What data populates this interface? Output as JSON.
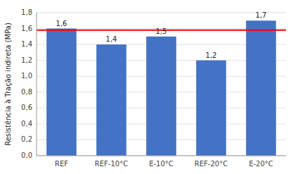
{
  "chart_data": {
    "type": "bar",
    "categories": [
      "REF",
      "REF-10°C",
      "E-10°C",
      "REF-20°C",
      "E-20°C"
    ],
    "values": [
      1.6,
      1.4,
      1.5,
      1.2,
      1.7
    ],
    "value_labels": [
      "1,6",
      "1,4",
      "1,5",
      "1,2",
      "1,7"
    ],
    "data_labels": true,
    "color": "#4472C4",
    "y_label": "Resistência à Tração indireta (MPa)",
    "ylim": [
      0,
      1.8
    ],
    "yticks": [
      {
        "value": 0.0,
        "label": "0,0"
      },
      {
        "value": 0.2,
        "label": "0,2"
      },
      {
        "value": 0.4,
        "label": "0,4"
      },
      {
        "value": 0.6,
        "label": "0,6"
      },
      {
        "value": 0.8,
        "label": "0,8"
      },
      {
        "value": 1.0,
        "label": "1,0"
      },
      {
        "value": 1.2,
        "label": "1,2"
      },
      {
        "value": 1.4,
        "label": "1,4"
      },
      {
        "value": 1.6,
        "label": "1,6"
      },
      {
        "value": 1.8,
        "label": "1,8"
      }
    ],
    "reference_line": {
      "value": 1.58,
      "color": "#FF0000"
    },
    "grid": true
  }
}
